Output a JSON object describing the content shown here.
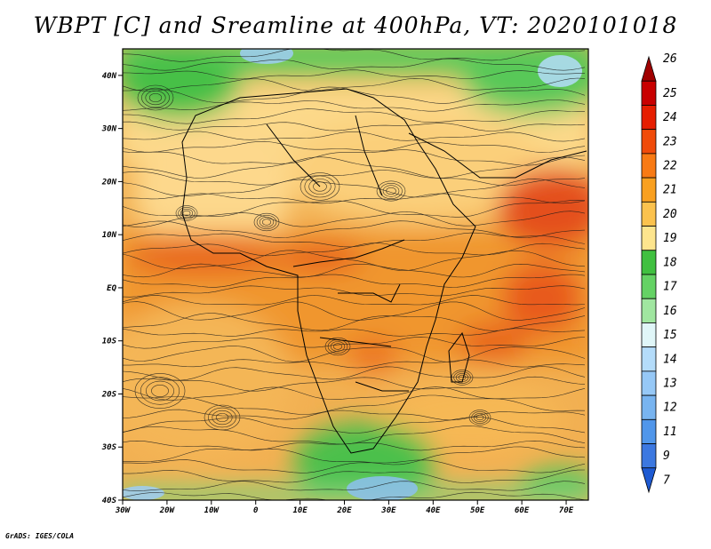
{
  "title": "WBPT [C] and Sreamline at 400hPa, VT: 2020101018",
  "footer": "GrADS: IGES/COLA",
  "map": {
    "lon_range": [
      -30,
      75
    ],
    "lat_range": [
      -40,
      45
    ],
    "lat_ticks": [
      {
        "value": 40,
        "label": "40N"
      },
      {
        "value": 30,
        "label": "30N"
      },
      {
        "value": 20,
        "label": "20N"
      },
      {
        "value": 10,
        "label": "10N"
      },
      {
        "value": 0,
        "label": "EQ"
      },
      {
        "value": -10,
        "label": "10S"
      },
      {
        "value": -20,
        "label": "20S"
      },
      {
        "value": -30,
        "label": "30S"
      },
      {
        "value": -40,
        "label": "40S"
      }
    ],
    "lon_ticks": [
      {
        "value": -30,
        "label": "30W"
      },
      {
        "value": -20,
        "label": "20W"
      },
      {
        "value": -10,
        "label": "10W"
      },
      {
        "value": 0,
        "label": "0"
      },
      {
        "value": 10,
        "label": "10E"
      },
      {
        "value": 20,
        "label": "20E"
      },
      {
        "value": 30,
        "label": "30E"
      },
      {
        "value": 40,
        "label": "40E"
      },
      {
        "value": 50,
        "label": "50E"
      },
      {
        "value": 60,
        "label": "60E"
      },
      {
        "value": 70,
        "label": "70E"
      }
    ]
  },
  "colorbar": {
    "levels": [
      {
        "label": "26",
        "color": "#a00000"
      },
      {
        "label": "25",
        "color": "#c80000"
      },
      {
        "label": "24",
        "color": "#e61e00"
      },
      {
        "label": "23",
        "color": "#f04b0a"
      },
      {
        "label": "22",
        "color": "#f87a14"
      },
      {
        "label": "21",
        "color": "#f9a020"
      },
      {
        "label": "20",
        "color": "#fbc24e"
      },
      {
        "label": "19",
        "color": "#fde58e"
      },
      {
        "label": "18",
        "color": "#40c040"
      },
      {
        "label": "17",
        "color": "#64d264"
      },
      {
        "label": "16",
        "color": "#a0e6a0"
      },
      {
        "label": "15",
        "color": "#e0f6f8"
      },
      {
        "label": "14",
        "color": "#b4dcfa"
      },
      {
        "label": "13",
        "color": "#96c8f6"
      },
      {
        "label": "12",
        "color": "#78b4f0"
      },
      {
        "label": "11",
        "color": "#5096ea"
      },
      {
        "label": "9",
        "color": "#3c78e0"
      },
      {
        "label": "7",
        "color": "#1e5ad2"
      }
    ]
  }
}
